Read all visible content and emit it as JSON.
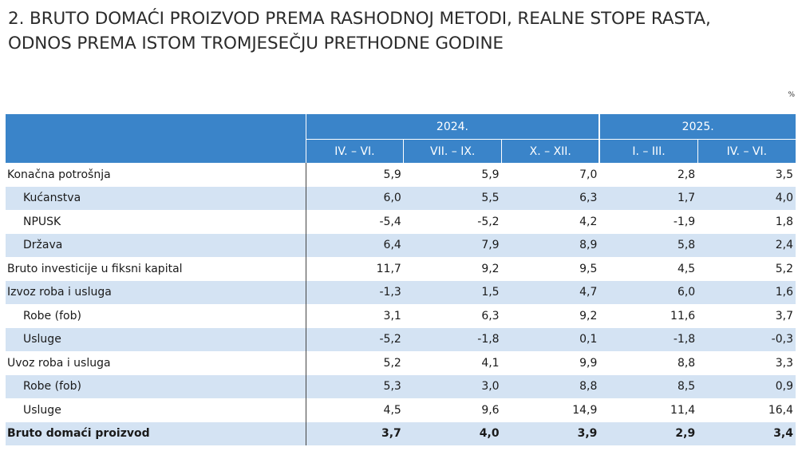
{
  "title_line1": "2. BRUTO DOMAĆI PROIZVOD PREMA RASHODNOJ METODI, REALNE STOPE RASTA,",
  "title_line2": "ODNOS PREMA ISTOM TROMJESEČJU PRETHODNE GODINE",
  "unit": "%",
  "years": [
    "2024.",
    "2025."
  ],
  "periods": [
    "IV. – VI.",
    "VII. – IX.",
    "X. – XII.",
    "I. – III.",
    "IV. – VI."
  ],
  "colors": {
    "header_bg": "#3a84c9",
    "stripe_bg": "#d4e3f3"
  },
  "rows": [
    {
      "label": "Konačna potrošnja",
      "values": [
        "5,9",
        "5,9",
        "7,0",
        "2,8",
        "3,5"
      ]
    },
    {
      "label": "Kućanstva",
      "values": [
        "6,0",
        "5,5",
        "6,3",
        "1,7",
        "4,0"
      ]
    },
    {
      "label": "NPUSK",
      "values": [
        "-5,4",
        "-5,2",
        "4,2",
        "-1,9",
        "1,8"
      ]
    },
    {
      "label": "Država",
      "values": [
        "6,4",
        "7,9",
        "8,9",
        "5,8",
        "2,4"
      ]
    },
    {
      "label": "Bruto investicije u fiksni kapital",
      "values": [
        "11,7",
        "9,2",
        "9,5",
        "4,5",
        "5,2"
      ]
    },
    {
      "label": "Izvoz roba i usluga",
      "values": [
        "-1,3",
        "1,5",
        "4,7",
        "6,0",
        "1,6"
      ]
    },
    {
      "label": "Robe (fob)",
      "values": [
        "3,1",
        "6,3",
        "9,2",
        "11,6",
        "3,7"
      ]
    },
    {
      "label": "Usluge",
      "values": [
        "-5,2",
        "-1,8",
        "0,1",
        "-1,8",
        "-0,3"
      ]
    },
    {
      "label": "Uvoz roba i usluga",
      "values": [
        "5,2",
        "4,1",
        "9,9",
        "8,8",
        "3,3"
      ]
    },
    {
      "label": "Robe (fob)",
      "values": [
        "5,3",
        "3,0",
        "8,8",
        "8,5",
        "0,9"
      ]
    },
    {
      "label": "Usluge",
      "values": [
        "4,5",
        "9,6",
        "14,9",
        "11,4",
        "16,4"
      ]
    },
    {
      "label": "Bruto domaći proizvod",
      "values": [
        "3,7",
        "4,0",
        "3,9",
        "2,9",
        "3,4"
      ]
    }
  ]
}
